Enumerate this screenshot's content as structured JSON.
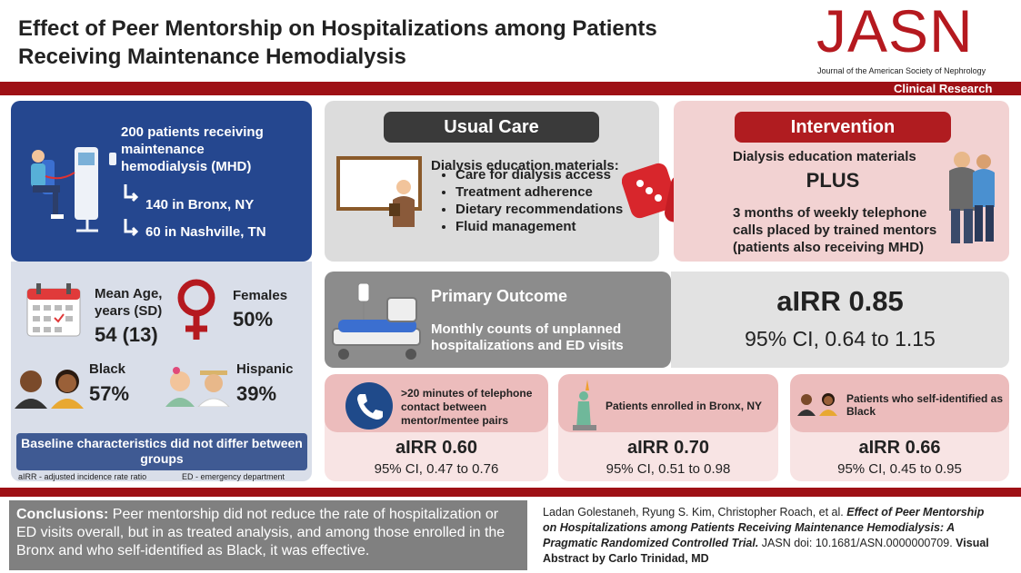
{
  "header": {
    "title": "Effect of Peer Mentorship on Hospitalizations among Patients Receiving Maintenance Hemodialysis",
    "journal": "JASN",
    "journal_name": "Journal of the American Society of Nephrology",
    "section": "Clinical Research"
  },
  "population": {
    "description": "200 patients receiving maintenance hemodialysis (MHD)",
    "sites": [
      "140 in Bronx, NY",
      "60 in Nashville, TN"
    ]
  },
  "baseline": {
    "age_label": "Mean Age, years (SD)",
    "age_value": "54 (13)",
    "females_label": "Females",
    "females_value": "50%",
    "black_label": "Black",
    "black_value": "57%",
    "hispanic_label": "Hispanic",
    "hispanic_value": "39%",
    "note": "Baseline characteristics did not differ between groups"
  },
  "abbreviations": [
    "aIRR - adjusted incidence rate ratio",
    "ED - emergency department"
  ],
  "usual_care": {
    "title": "Usual Care",
    "lead": "Dialysis education materials:",
    "items": [
      "Care for dialysis access",
      "Treatment adherence",
      "Dietary recommendations",
      "Fluid management"
    ]
  },
  "intervention": {
    "title": "Intervention",
    "lead": "Dialysis education materials",
    "plus": "PLUS",
    "detail": "3 months of weekly telephone calls placed by trained mentors (patients also receiving MHD)"
  },
  "primary_outcome": {
    "title": "Primary Outcome",
    "description": "Monthly counts of unplanned hospitalizations and ED visits",
    "airr": "aIRR 0.85",
    "ci": "95% CI, 0.64 to 1.15"
  },
  "subgroups": [
    {
      "label": ">20 minutes of telephone contact between mentor/mentee pairs",
      "airr": "aIRR 0.60",
      "ci": "95% CI, 0.47 to 0.76"
    },
    {
      "label": "Patients enrolled in Bronx, NY",
      "airr": "aIRR 0.70",
      "ci": "95% CI, 0.51 to 0.98"
    },
    {
      "label": "Patients who self-identified as Black",
      "airr": "aIRR 0.66",
      "ci": "95% CI, 0.45 to 0.95"
    }
  ],
  "conclusions": {
    "label": "Conclusions:",
    "text": "Peer mentorship did not reduce the rate of hospitalization or ED visits overall, but in as treated analysis, and among those enrolled in the Bronx and who self-identified as Black, it was effective."
  },
  "citation": {
    "authors": "Ladan Golestaneh, Ryung S. Kim, Christopher Roach, et al.",
    "title": "Effect of Peer Mentorship on Hospitalizations among Patients Receiving Maintenance Hemodialysis: A Pragmatic Randomized Controlled Trial.",
    "journal": "JASN doi: 10.1681/ASN.0000000709.",
    "credit": "Visual Abstract by Carlo Trinidad, MD"
  }
}
